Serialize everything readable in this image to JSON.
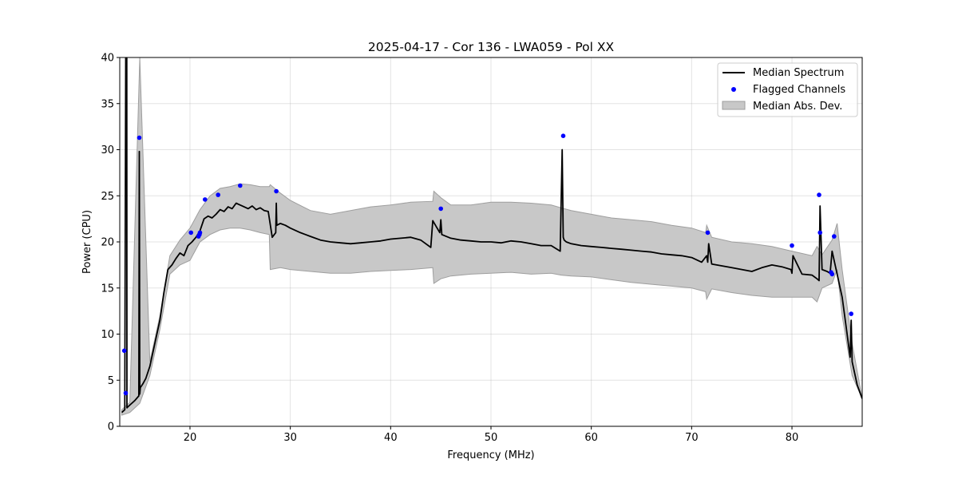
{
  "chart_data": {
    "type": "line",
    "title": "2025-04-17 - Cor 136 - LWA059 - Pol XX",
    "xlabel": "Frequency (MHz)",
    "ylabel": "Power (CPU)",
    "xlim": [
      13,
      87
    ],
    "ylim": [
      0,
      40
    ],
    "xticks": [
      20,
      30,
      40,
      50,
      60,
      70,
      80
    ],
    "yticks": [
      0,
      5,
      10,
      15,
      20,
      25,
      30,
      35,
      40
    ],
    "grid": true,
    "legend_position": "top-right",
    "legend": [
      "Median Spectrum",
      "Flagged Channels",
      "Median Abs. Dev."
    ],
    "colors": {
      "median": "#000000",
      "flagged": "#0000ff",
      "mad_fill": "#c8c8c8",
      "mad_edge": "#9e9e9e"
    },
    "series": [
      {
        "name": "Median Spectrum",
        "x": [
          13.2,
          13.5,
          13.6,
          13.7,
          13.72,
          13.8,
          14,
          14.5,
          14.9,
          14.95,
          15.0,
          15.05,
          15.3,
          15.6,
          16,
          16.5,
          17,
          17.4,
          17.8,
          18.2,
          18.6,
          19,
          19.4,
          19.8,
          20.2,
          20.6,
          21,
          21.4,
          21.8,
          22.2,
          22.6,
          23,
          23.4,
          23.8,
          24.2,
          24.6,
          25,
          25.4,
          25.8,
          26.2,
          26.6,
          27,
          27.4,
          27.8,
          28.2,
          28.55,
          28.6,
          28.65,
          29,
          29.5,
          30,
          31,
          32,
          33,
          34,
          35,
          36,
          37,
          38,
          39,
          40,
          41,
          42,
          43,
          44,
          44.2,
          44.9,
          45.0,
          45.1,
          46,
          47,
          48,
          49,
          50,
          51,
          52,
          53,
          54,
          55,
          56,
          56.9,
          57.1,
          57.2,
          57.3,
          57.5,
          58,
          59,
          60,
          61,
          62,
          63,
          64,
          65,
          66,
          67,
          68,
          69,
          70,
          71,
          71.5,
          71.6,
          71.7,
          72,
          73,
          74,
          75,
          76,
          77,
          78,
          79,
          79.9,
          80,
          80.1,
          81,
          82,
          82.5,
          82.7,
          82.8,
          83,
          83.5,
          83.8,
          84,
          84.3,
          85,
          85.5,
          85.8,
          85.9,
          86,
          86.5,
          87
        ],
        "y": [
          1.5,
          1.8,
          40,
          40,
          2.0,
          2.1,
          2.3,
          2.8,
          3.3,
          29.8,
          3.5,
          4.2,
          4.6,
          5.2,
          6.5,
          9.0,
          11.5,
          14.5,
          17.0,
          17.5,
          18.2,
          18.8,
          18.5,
          19.6,
          20.0,
          20.5,
          21.2,
          22.5,
          22.8,
          22.6,
          23.0,
          23.5,
          23.3,
          23.8,
          23.6,
          24.2,
          24.0,
          23.8,
          23.6,
          23.9,
          23.5,
          23.7,
          23.4,
          23.3,
          20.5,
          21.0,
          24.2,
          21.8,
          22.0,
          21.8,
          21.5,
          21.0,
          20.6,
          20.2,
          20.0,
          19.9,
          19.8,
          19.9,
          20.0,
          20.1,
          20.3,
          20.4,
          20.5,
          20.2,
          19.4,
          22.3,
          21.0,
          22.4,
          20.8,
          20.4,
          20.2,
          20.1,
          20.0,
          20.0,
          19.9,
          20.1,
          20.0,
          19.8,
          19.6,
          19.6,
          19.0,
          30.0,
          20.5,
          20.2,
          20.0,
          19.8,
          19.6,
          19.5,
          19.4,
          19.3,
          19.2,
          19.1,
          19.0,
          18.9,
          18.7,
          18.6,
          18.5,
          18.3,
          17.8,
          18.5,
          17.8,
          19.8,
          17.6,
          17.4,
          17.2,
          17.0,
          16.8,
          17.2,
          17.5,
          17.3,
          17.0,
          16.6,
          18.5,
          16.5,
          16.4,
          16.0,
          15.8,
          23.9,
          17.0,
          16.8,
          16.6,
          19.0,
          17.5,
          14.0,
          10.0,
          7.5,
          11.5,
          7.0,
          4.5,
          3.0
        ]
      },
      {
        "name": "Flagged Channels",
        "x": [
          13.45,
          13.6,
          14.95,
          20.1,
          20.85,
          20.95,
          21.0,
          21.5,
          22.8,
          25.0,
          28.6,
          45.0,
          57.2,
          71.6,
          80.0,
          82.7,
          82.8,
          83.9,
          84.0,
          84.2,
          85.9
        ],
        "y": [
          8.2,
          3.6,
          31.3,
          21.0,
          20.6,
          20.8,
          21.0,
          24.6,
          25.1,
          26.1,
          25.5,
          23.6,
          31.5,
          21.0,
          19.6,
          25.1,
          21.0,
          16.7,
          16.5,
          20.6,
          12.2
        ]
      },
      {
        "name": "Median Abs. Dev.",
        "x": [
          13.2,
          14,
          15,
          16,
          17,
          18,
          19,
          20,
          21,
          22,
          23,
          24,
          25,
          26,
          27,
          27.9,
          28.0,
          29,
          30,
          32,
          34,
          36,
          38,
          40,
          42,
          44.2,
          44.3,
          45,
          46,
          48,
          50,
          52,
          54,
          56,
          57,
          58,
          60,
          62,
          64,
          66,
          68,
          70,
          71.4,
          71.5,
          72,
          74,
          76,
          78,
          80,
          82,
          82.5,
          83,
          84,
          84.5,
          85,
          86,
          87
        ],
        "upper": [
          1.8,
          2.6,
          40,
          7.0,
          12.0,
          18.5,
          20.2,
          21.5,
          23.5,
          25.0,
          25.8,
          26.0,
          26.3,
          26.2,
          26.0,
          26.0,
          26.2,
          25.3,
          24.5,
          23.4,
          23.0,
          23.4,
          23.8,
          24.0,
          24.3,
          24.4,
          25.5,
          24.8,
          24.0,
          24.0,
          24.3,
          24.3,
          24.2,
          24.0,
          23.7,
          23.4,
          23.0,
          22.6,
          22.4,
          22.2,
          21.8,
          21.5,
          21.0,
          21.8,
          20.5,
          20.0,
          19.8,
          19.5,
          19.0,
          18.5,
          19.5,
          18.6,
          20.2,
          22.0,
          17.0,
          9.0,
          3.0
        ],
        "lower": [
          1.2,
          1.5,
          2.5,
          5.5,
          10.5,
          16.5,
          17.5,
          18.0,
          20.0,
          20.8,
          21.3,
          21.5,
          21.5,
          21.3,
          21.0,
          20.8,
          17.0,
          17.2,
          17.0,
          16.8,
          16.6,
          16.6,
          16.8,
          16.9,
          17.0,
          17.2,
          15.5,
          16.0,
          16.3,
          16.5,
          16.6,
          16.7,
          16.5,
          16.6,
          16.4,
          16.3,
          16.2,
          15.9,
          15.6,
          15.4,
          15.2,
          15.0,
          14.6,
          13.8,
          14.9,
          14.5,
          14.2,
          14.0,
          14.0,
          14.0,
          13.5,
          15.0,
          15.5,
          17.0,
          12.0,
          5.5,
          3.0
        ]
      }
    ]
  }
}
